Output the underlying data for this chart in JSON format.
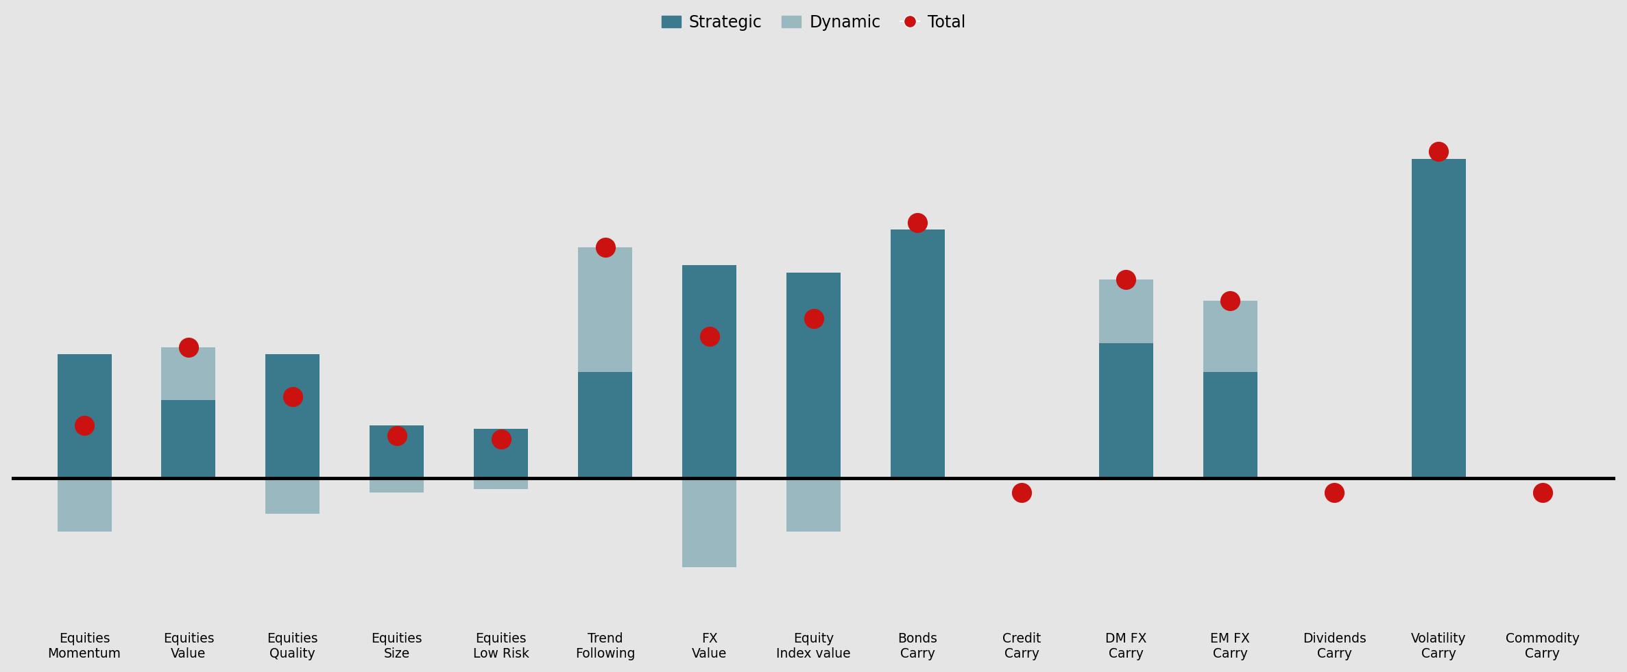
{
  "categories": [
    "Equities\nMomentum",
    "Equities\nValue",
    "Equities\nQuality",
    "Equities\nSize",
    "Equities\nLow Risk",
    "Trend\nFollowing",
    "FX\nValue",
    "Equity\nIndex value",
    "Bonds\nCarry",
    "Credit\nCarry",
    "DM FX\nCarry",
    "EM FX\nCarry",
    "Dividends\nCarry",
    "Volatility\nCarry",
    "Commodity\nCarry"
  ],
  "strategic": [
    3.5,
    2.2,
    3.5,
    1.5,
    1.4,
    3.0,
    6.0,
    5.8,
    7.0,
    0.0,
    3.8,
    3.0,
    0.0,
    9.0,
    0.0
  ],
  "dynamic": [
    -1.5,
    1.5,
    -1.0,
    -0.4,
    -0.3,
    3.5,
    -2.5,
    -1.5,
    0.0,
    0.0,
    1.8,
    2.0,
    0.0,
    0.0,
    0.0
  ],
  "total": [
    1.5,
    3.7,
    2.3,
    1.2,
    1.1,
    6.5,
    4.0,
    4.5,
    7.2,
    -0.4,
    5.6,
    5.0,
    -0.4,
    9.2,
    -0.4
  ],
  "strategic_color": "#3a7a8c",
  "dynamic_color": "#9ab8c0",
  "total_color": "#cc1111",
  "background_color": "#e5e5e5",
  "legend_labels": [
    "Strategic",
    "Dynamic",
    "Total"
  ]
}
